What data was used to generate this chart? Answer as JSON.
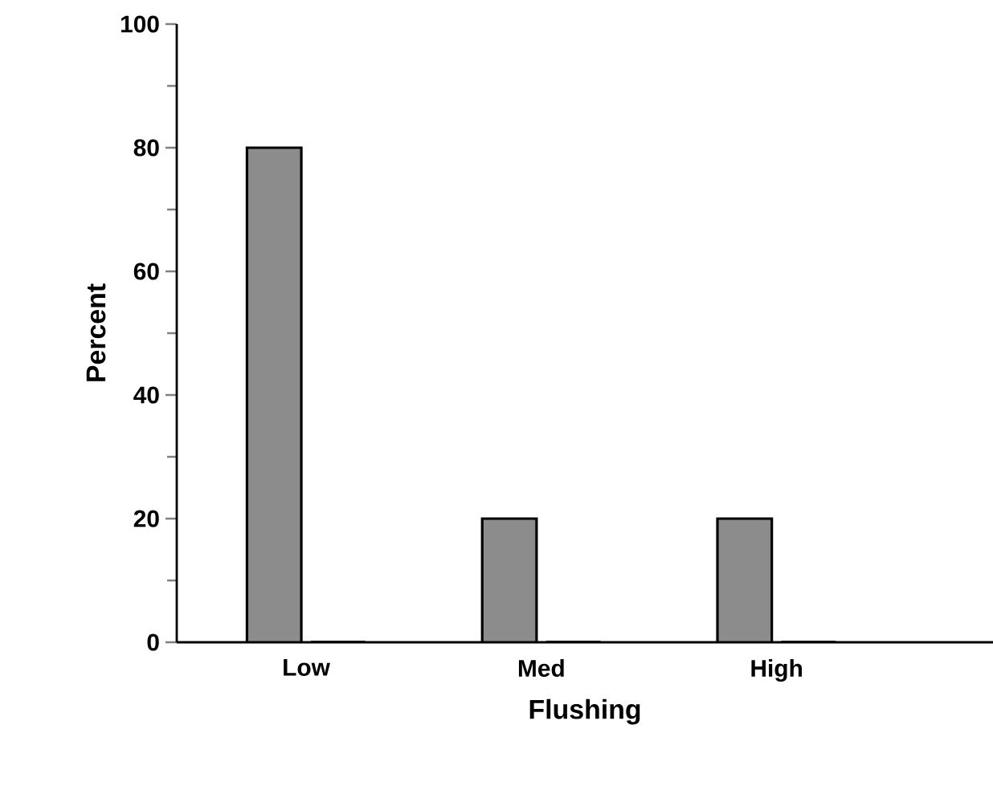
{
  "chart_data": {
    "type": "bar",
    "xlabel": "Flushing",
    "ylabel": "Percent",
    "categories": [
      "Low",
      "Med",
      "High"
    ],
    "series": [
      {
        "color": "#8c8c8c",
        "values": [
          80,
          20,
          20
        ]
      },
      {
        "color": "#000000",
        "values": [
          0,
          0,
          0
        ]
      }
    ],
    "ylim": [
      0,
      100
    ],
    "yticks": [
      0,
      20,
      40,
      60,
      80,
      100
    ],
    "grid": false
  }
}
